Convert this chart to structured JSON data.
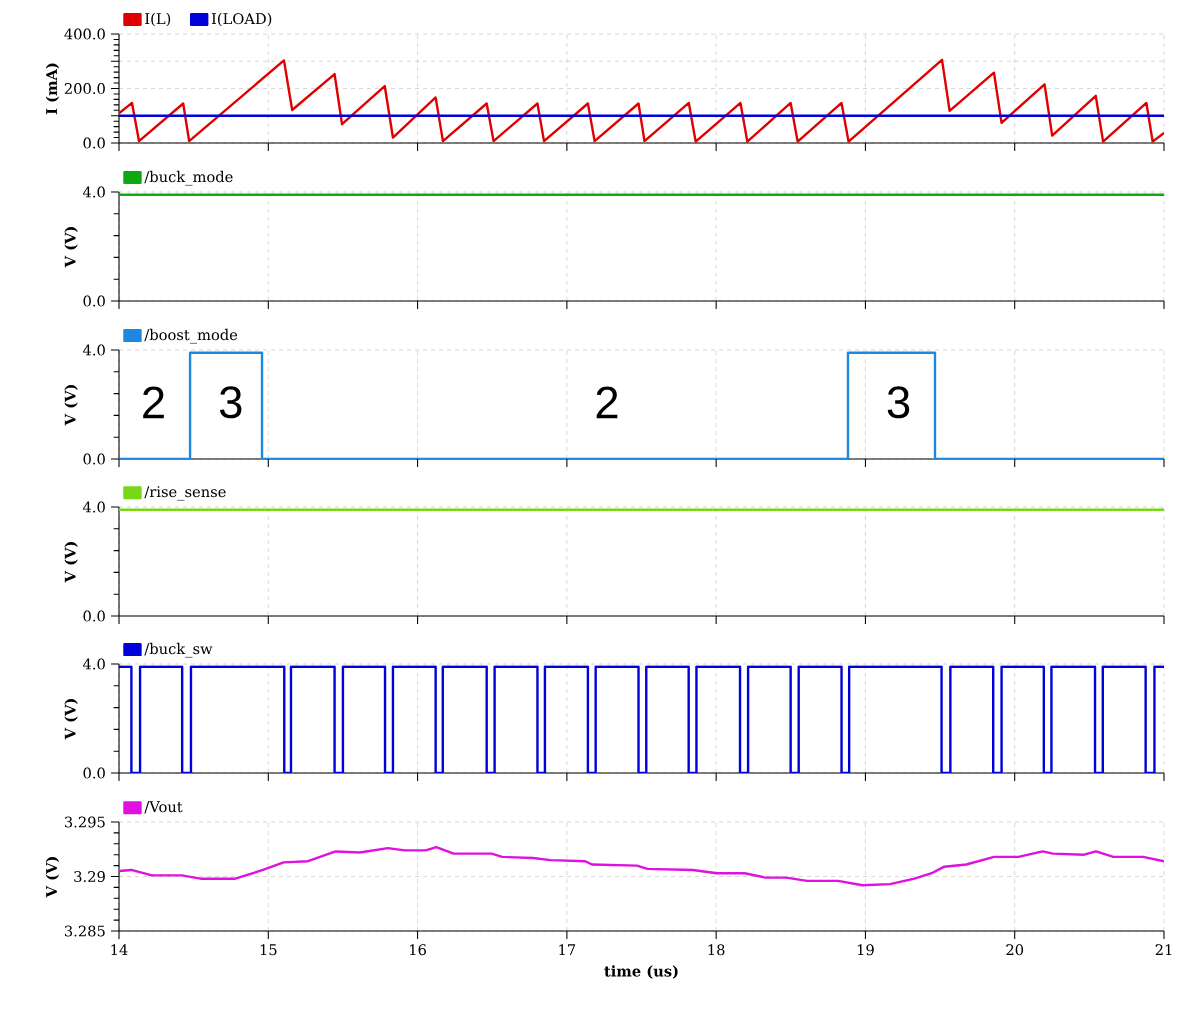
{
  "chart_data": [
    {
      "type": "line",
      "ylabel": "I (mA)",
      "legend": "top left",
      "grid": true,
      "tick_labels": "y",
      "xlim": [
        14,
        21
      ],
      "xticks": [
        14,
        15,
        16,
        17,
        18,
        19,
        20,
        21
      ],
      "ylim": [
        0,
        400
      ],
      "yticks": [
        {
          "value": 0,
          "label": "0.0"
        },
        {
          "value": 100,
          "label": null
        },
        {
          "value": 200,
          "label": "200.0"
        },
        {
          "value": 300,
          "label": null
        },
        {
          "value": 400,
          "label": "400.0"
        }
      ],
      "series": [
        {
          "name": "I(L)",
          "color": "#e00000",
          "x": [
            14.0,
            14.087,
            14.134,
            14.43,
            14.47,
            15.105,
            15.16,
            15.444,
            15.494,
            15.78,
            15.835,
            16.121,
            16.17,
            16.463,
            16.509,
            16.803,
            16.847,
            17.141,
            17.186,
            17.48,
            17.52,
            17.817,
            17.863,
            18.163,
            18.209,
            18.499,
            18.546,
            18.84,
            18.887,
            19.513,
            19.564,
            19.861,
            19.912,
            20.2,
            20.251,
            20.543,
            20.592,
            20.882,
            20.924,
            21.0
          ],
          "values": [
            109,
            147,
            7,
            145,
            7,
            303,
            121,
            253,
            69,
            209,
            20,
            167,
            7,
            145,
            7,
            145,
            7,
            145,
            7,
            145,
            7,
            147,
            5,
            147,
            5,
            147,
            5,
            147,
            5,
            305,
            118,
            258,
            74,
            215,
            27,
            173,
            5,
            147,
            5,
            37
          ]
        },
        {
          "name": "I(LOAD)",
          "color": "#0000d8",
          "x": [
            14,
            21
          ],
          "values": [
            100,
            100
          ]
        }
      ]
    },
    {
      "type": "line",
      "ylabel": "V (V)",
      "legend": "top left",
      "grid": true,
      "tick_labels": "y",
      "xlim": [
        14,
        21
      ],
      "xticks": [
        14,
        15,
        16,
        17,
        18,
        19,
        20,
        21
      ],
      "ylim": [
        0,
        4
      ],
      "yticks": [
        {
          "value": 0,
          "label": "0.0"
        },
        {
          "value": 4,
          "label": "4.0"
        }
      ],
      "series": [
        {
          "name": "/buck_mode",
          "color": "#10a810",
          "x": [
            14,
            21
          ],
          "values": [
            3.9,
            3.9
          ]
        }
      ]
    },
    {
      "type": "step",
      "ylabel": "V (V)",
      "legend": "top left",
      "grid": true,
      "tick_labels": "y",
      "xlim": [
        14,
        21
      ],
      "xticks": [
        14,
        15,
        16,
        17,
        18,
        19,
        20,
        21
      ],
      "ylim": [
        0,
        4
      ],
      "yticks": [
        {
          "value": 0,
          "label": "0.0"
        },
        {
          "value": 4,
          "label": "4.0"
        }
      ],
      "annotations": [
        "2",
        "3",
        "2",
        "3"
      ],
      "series": [
        {
          "name": "/boost_mode",
          "color": "#1e88e0",
          "x": [
            14,
            14.476,
            14.958,
            18.883,
            19.466,
            21
          ],
          "values": [
            0,
            3.9,
            0,
            3.9,
            0,
            0
          ]
        }
      ]
    },
    {
      "type": "line",
      "ylabel": "V (V)",
      "legend": "top left",
      "grid": true,
      "tick_labels": "y",
      "xlim": [
        14,
        21
      ],
      "xticks": [
        14,
        15,
        16,
        17,
        18,
        19,
        20,
        21
      ],
      "ylim": [
        0,
        4
      ],
      "yticks": [
        {
          "value": 0,
          "label": "0.0"
        },
        {
          "value": 4,
          "label": "4.0"
        }
      ],
      "series": [
        {
          "name": "/rise_sense",
          "color": "#78d818",
          "x": [
            14,
            21
          ],
          "values": [
            3.9,
            3.9
          ]
        }
      ]
    },
    {
      "type": "step",
      "ylabel": "V (V)",
      "legend": "top left",
      "grid": true,
      "tick_labels": "y",
      "xlim": [
        14,
        21
      ],
      "xticks": [
        14,
        15,
        16,
        17,
        18,
        19,
        20,
        21
      ],
      "ylim": [
        0,
        4
      ],
      "yticks": [
        {
          "value": 0,
          "label": "0.0"
        },
        {
          "value": 4,
          "label": "4.0"
        }
      ],
      "series": [
        {
          "name": "/buck_sw",
          "color": "#0000d8",
          "x": [
            14,
            14.083,
            14.141,
            14.423,
            14.482,
            15.107,
            15.152,
            15.444,
            15.5,
            15.782,
            15.835,
            16.121,
            16.169,
            16.463,
            16.516,
            16.803,
            16.853,
            17.141,
            17.193,
            17.48,
            17.532,
            17.816,
            17.868,
            18.16,
            18.214,
            18.499,
            18.553,
            18.84,
            18.891,
            19.51,
            19.569,
            19.856,
            19.912,
            20.195,
            20.246,
            20.538,
            20.59,
            20.877,
            20.936,
            21
          ],
          "values": [
            3.9,
            0,
            3.9,
            0,
            3.9,
            0,
            3.9,
            0,
            3.9,
            0,
            3.9,
            0,
            3.9,
            0,
            3.9,
            0,
            3.9,
            0,
            3.9,
            0,
            3.9,
            0,
            3.9,
            0,
            3.9,
            0,
            3.9,
            0,
            3.9,
            0,
            3.9,
            0,
            3.9,
            0,
            3.9,
            0,
            3.9,
            0,
            3.9,
            3.9
          ]
        }
      ]
    },
    {
      "type": "line",
      "xlabel": "time (us)",
      "ylabel": "V (V)",
      "legend": "top left",
      "grid": true,
      "xlim": [
        14,
        21
      ],
      "xticks": [
        14,
        15,
        16,
        17,
        18,
        19,
        20,
        21
      ],
      "ylim": [
        3.285,
        3.295
      ],
      "yticks": [
        3.285,
        3.29,
        3.295
      ],
      "series": [
        {
          "name": "/Vout",
          "color": "#e010e0",
          "x": [
            14.0,
            14.082,
            14.221,
            14.42,
            14.546,
            14.778,
            14.964,
            15.103,
            15.266,
            15.451,
            15.614,
            15.8,
            15.916,
            16.055,
            16.125,
            16.241,
            16.496,
            16.566,
            16.773,
            16.891,
            17.123,
            17.168,
            17.469,
            17.54,
            17.843,
            18.006,
            18.191,
            18.33,
            18.47,
            18.608,
            18.817,
            18.98,
            19.165,
            19.328,
            19.444,
            19.528,
            19.676,
            19.862,
            20.025,
            20.187,
            20.256,
            20.465,
            20.544,
            20.66,
            20.86,
            21.0
          ],
          "values": [
            3.2905,
            3.2906,
            3.2901,
            3.2901,
            3.2898,
            3.2898,
            3.2906,
            3.2913,
            3.2914,
            3.2923,
            3.2922,
            3.2926,
            3.2924,
            3.2924,
            3.2927,
            3.2921,
            3.2921,
            3.2918,
            3.2917,
            3.2915,
            3.2914,
            3.2911,
            3.291,
            3.2907,
            3.2906,
            3.2903,
            3.2903,
            3.2899,
            3.2899,
            3.2896,
            3.2896,
            3.2892,
            3.2893,
            3.2898,
            3.2903,
            3.2909,
            3.2911,
            3.2918,
            3.2918,
            3.2923,
            3.2921,
            3.292,
            3.2923,
            3.2918,
            3.2918,
            3.2914
          ]
        }
      ]
    }
  ]
}
